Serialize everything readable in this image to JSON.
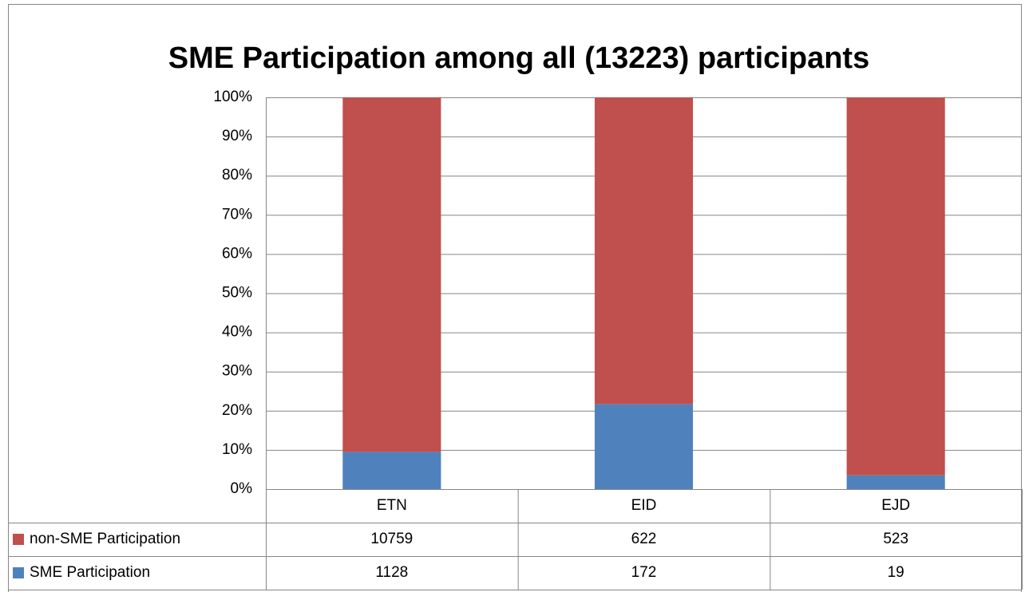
{
  "chart_data": {
    "type": "bar",
    "stacking": "percent",
    "title": "SME Participation among all (13223) participants",
    "categories": [
      "ETN",
      "EID",
      "EJD"
    ],
    "series": [
      {
        "name": "non-SME Participation",
        "color": "#c0504d",
        "values": [
          10759,
          622,
          523
        ]
      },
      {
        "name": "SME Participation",
        "color": "#4f81bd",
        "values": [
          1128,
          172,
          19
        ]
      }
    ],
    "ylim": [
      0,
      100
    ],
    "yticks": [
      {
        "value": 0,
        "label": "0%"
      },
      {
        "value": 10,
        "label": "10%"
      },
      {
        "value": 20,
        "label": "20%"
      },
      {
        "value": 30,
        "label": "30%"
      },
      {
        "value": 40,
        "label": "40%"
      },
      {
        "value": 50,
        "label": "50%"
      },
      {
        "value": 60,
        "label": "60%"
      },
      {
        "value": 70,
        "label": "70%"
      },
      {
        "value": 80,
        "label": "80%"
      },
      {
        "value": 90,
        "label": "90%"
      },
      {
        "value": 100,
        "label": "100%"
      }
    ],
    "grid": true
  }
}
